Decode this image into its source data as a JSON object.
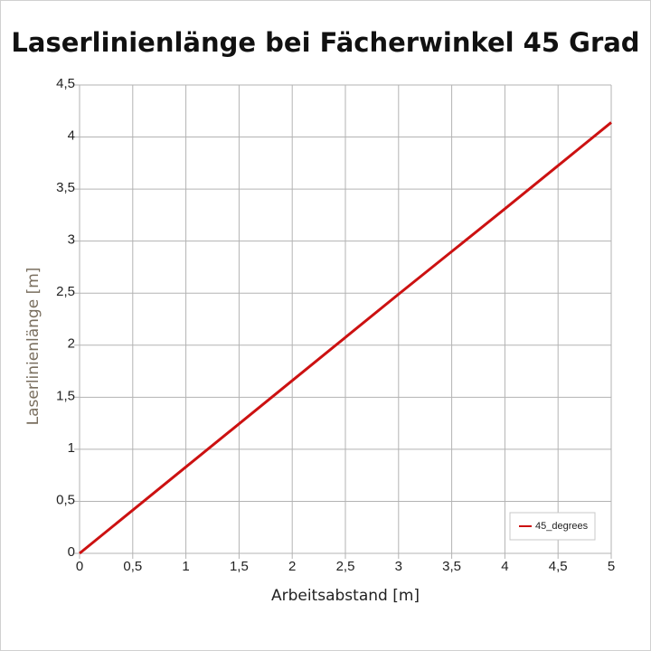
{
  "chart_data": {
    "type": "line",
    "title": "Laserlinienlänge bei Fächerwinkel 45 Grad",
    "xlabel": "Arbeitsabstand [m]",
    "ylabel": "Laserlinienlänge [m]",
    "x": [
      0,
      1,
      2,
      3,
      4,
      5
    ],
    "series": [
      {
        "name": "45_degrees",
        "color": "#cc1111",
        "values": [
          0,
          0.83,
          1.66,
          2.49,
          3.31,
          4.14
        ]
      }
    ],
    "xlim": [
      0,
      5
    ],
    "ylim": [
      0,
      4.5
    ],
    "xticks": [
      0,
      {
        "value": 0.5,
        "label": "0,5"
      },
      1,
      {
        "value": 1.5,
        "label": "1,5"
      },
      2,
      {
        "value": 2.5,
        "label": "2,5"
      },
      3,
      {
        "value": 3.5,
        "label": "3,5"
      },
      4,
      {
        "value": 4.5,
        "label": "4,5"
      },
      5
    ],
    "yticks": [
      0,
      {
        "value": 0.5,
        "label": "0,5"
      },
      1,
      {
        "value": 1.5,
        "label": "1,5"
      },
      2,
      {
        "value": 2.5,
        "label": "2,5"
      },
      3,
      {
        "value": 3.5,
        "label": "3,5"
      },
      4,
      {
        "value": 4.5,
        "label": "4,5"
      }
    ],
    "grid": true,
    "legend": "lower right"
  }
}
